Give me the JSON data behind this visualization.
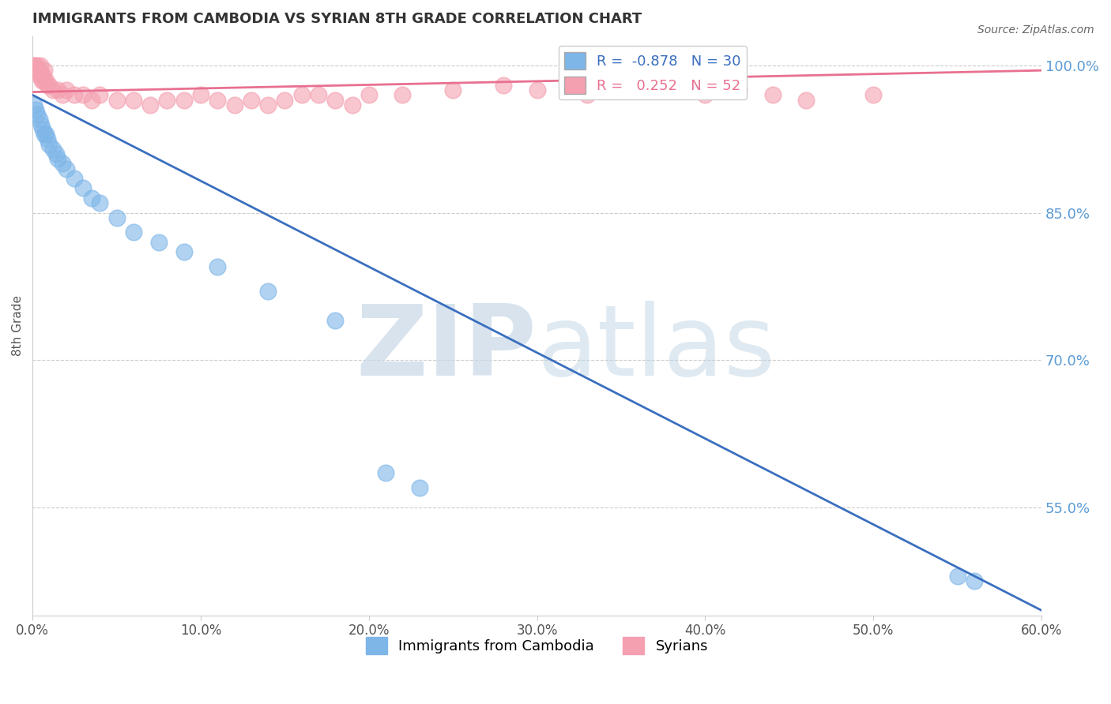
{
  "title": "IMMIGRANTS FROM CAMBODIA VS SYRIAN 8TH GRADE CORRELATION CHART",
  "source": "Source: ZipAtlas.com",
  "ylabel": "8th Grade",
  "xlabel_ticks": [
    "0.0%",
    "10.0%",
    "20.0%",
    "30.0%",
    "40.0%",
    "50.0%",
    "60.0%"
  ],
  "xlabel_vals": [
    0.0,
    10.0,
    20.0,
    30.0,
    40.0,
    50.0,
    60.0
  ],
  "ylabel_ticks_right": [
    "100.0%",
    "85.0%",
    "70.0%",
    "55.0%"
  ],
  "ylabel_vals_right": [
    100.0,
    85.0,
    70.0,
    55.0
  ],
  "xlim": [
    0.0,
    60.0
  ],
  "ylim": [
    44.0,
    103.0
  ],
  "cambodia_R": -0.878,
  "cambodia_N": 30,
  "syrian_R": 0.252,
  "syrian_N": 52,
  "cambodia_color": "#7EB6E8",
  "syrian_color": "#F4A0B0",
  "cambodia_line_color": "#3A6FBF",
  "syrian_line_color": "#E87090",
  "legend_label_cambodia": "Immigrants from Cambodia",
  "legend_label_syrian": "Syrians",
  "watermark_zip": "ZIP",
  "watermark_atlas": "atlas",
  "background_color": "#ffffff",
  "grid_color": "#cccccc",
  "title_color": "#333333",
  "axis_label_color": "#555555",
  "right_tick_color": "#5B9BD5",
  "cambodia_x": [
    0.1,
    0.2,
    0.3,
    0.4,
    0.5,
    0.6,
    0.7,
    0.8,
    0.9,
    1.0,
    1.2,
    1.4,
    1.5,
    1.8,
    2.0,
    2.5,
    3.0,
    3.5,
    4.0,
    5.0,
    6.0,
    7.5,
    9.0,
    11.0,
    14.0,
    18.0,
    21.0,
    23.0,
    55.0,
    56.0
  ],
  "cambodia_y": [
    96.0,
    95.5,
    95.0,
    94.5,
    94.0,
    93.5,
    93.0,
    93.0,
    92.5,
    92.0,
    91.5,
    91.0,
    90.5,
    90.0,
    89.5,
    88.5,
    87.5,
    86.5,
    86.0,
    84.5,
    83.0,
    82.0,
    81.0,
    79.5,
    77.0,
    74.0,
    58.5,
    57.0,
    48.0,
    47.5
  ],
  "syrian_x": [
    0.1,
    0.15,
    0.2,
    0.25,
    0.3,
    0.35,
    0.4,
    0.45,
    0.5,
    0.55,
    0.6,
    0.65,
    0.7,
    0.8,
    0.9,
    1.0,
    1.2,
    1.5,
    1.8,
    2.0,
    2.5,
    3.0,
    3.5,
    4.0,
    5.0,
    6.0,
    7.0,
    8.0,
    9.0,
    10.0,
    11.0,
    12.0,
    13.0,
    14.0,
    15.0,
    16.0,
    17.0,
    18.0,
    19.0,
    20.0,
    22.0,
    25.0,
    28.0,
    30.0,
    33.0,
    36.0,
    38.0,
    40.0,
    42.0,
    44.0,
    46.0,
    50.0
  ],
  "syrian_y": [
    100.0,
    100.0,
    99.5,
    99.5,
    100.0,
    99.0,
    99.5,
    100.0,
    99.0,
    98.5,
    99.0,
    98.5,
    99.5,
    98.5,
    98.0,
    98.0,
    97.5,
    97.5,
    97.0,
    97.5,
    97.0,
    97.0,
    96.5,
    97.0,
    96.5,
    96.5,
    96.0,
    96.5,
    96.5,
    97.0,
    96.5,
    96.0,
    96.5,
    96.0,
    96.5,
    97.0,
    97.0,
    96.5,
    96.0,
    97.0,
    97.0,
    97.5,
    98.0,
    97.5,
    97.0,
    97.5,
    97.5,
    97.0,
    97.5,
    97.0,
    96.5,
    97.0
  ],
  "camb_line_x": [
    0.0,
    60.0
  ],
  "camb_line_y": [
    97.0,
    44.5
  ],
  "syr_line_x": [
    0.0,
    60.0
  ],
  "syr_line_y": [
    97.3,
    99.5
  ]
}
